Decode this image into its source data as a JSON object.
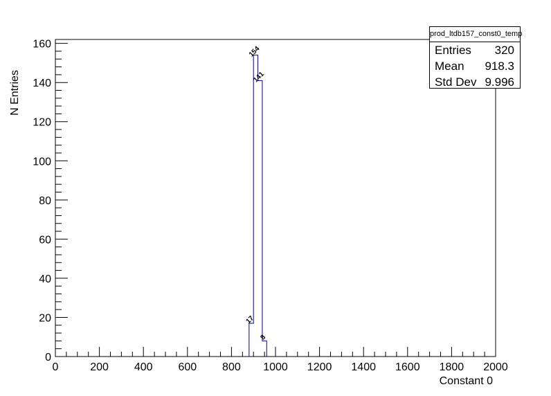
{
  "chart_data": {
    "type": "histogram",
    "xlabel": "Constant 0",
    "ylabel": "N Entries",
    "xlim": [
      0,
      2000
    ],
    "ylim": [
      0,
      162
    ],
    "x_ticks": [
      0,
      200,
      400,
      600,
      800,
      1000,
      1200,
      1400,
      1600,
      1800,
      2000
    ],
    "y_ticks": [
      0,
      20,
      40,
      60,
      80,
      100,
      120,
      140,
      160
    ],
    "bin_width": 20,
    "bins": [
      {
        "x_low": 880,
        "x_high": 900,
        "count": 17,
        "label": "17"
      },
      {
        "x_low": 900,
        "x_high": 920,
        "count": 154,
        "label": "154"
      },
      {
        "x_low": 920,
        "x_high": 940,
        "count": 141,
        "label": "141"
      },
      {
        "x_low": 940,
        "x_high": 960,
        "count": 8,
        "label": "8"
      }
    ],
    "line_color": "#000099",
    "grid": false
  },
  "stats": {
    "title": "prod_ltdb157_const0_temp",
    "rows": [
      {
        "key": "Entries",
        "value": "320"
      },
      {
        "key": "Mean",
        "value": "918.3"
      },
      {
        "key": "Std Dev",
        "value": "9.996"
      }
    ]
  }
}
